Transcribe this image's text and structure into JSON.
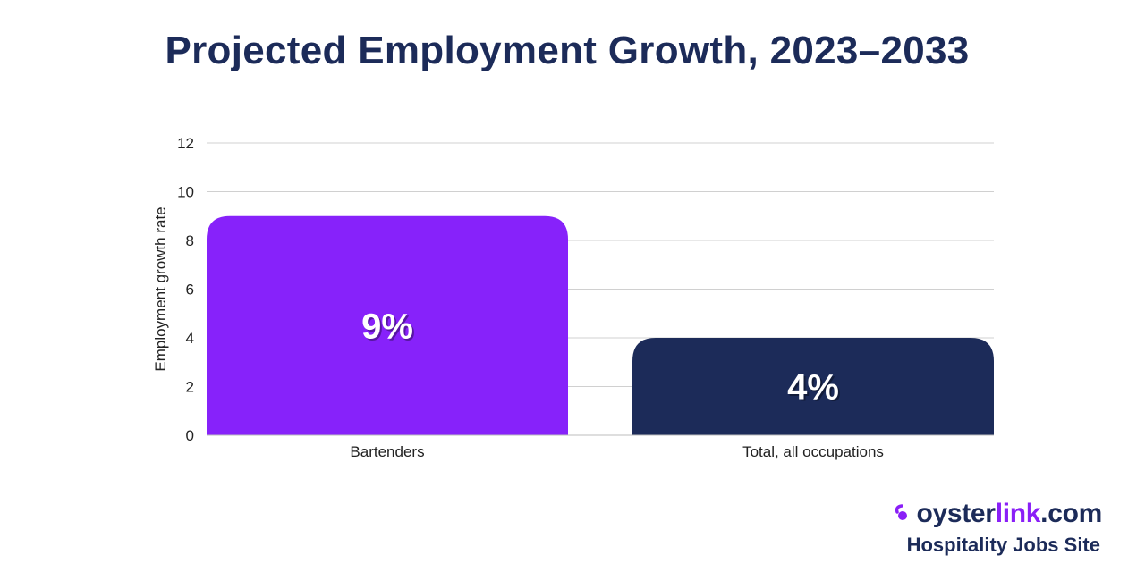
{
  "chart_data": {
    "type": "bar",
    "title": "Projected Employment Growth, 2023–2033",
    "xlabel": "",
    "ylabel": "Employment growth rate",
    "categories": [
      "Bartenders",
      "Total, all occupations"
    ],
    "values": [
      9,
      4
    ],
    "data_labels": [
      "9%",
      "4%"
    ],
    "bar_colors": [
      "#8722fa",
      "#1c2b59"
    ],
    "ylim": [
      0,
      12
    ],
    "yticks": [
      0,
      2,
      4,
      6,
      8,
      10,
      12
    ],
    "grid": true,
    "legend": "none"
  },
  "branding": {
    "logo_part1": "oyster",
    "logo_part2": "link",
    "logo_part3": ".com",
    "tagline": "Hospitality Jobs Site",
    "accent_color": "#8a1ff7",
    "text_color": "#1c2b59",
    "logo_icon": "oyster-swirl-icon"
  }
}
